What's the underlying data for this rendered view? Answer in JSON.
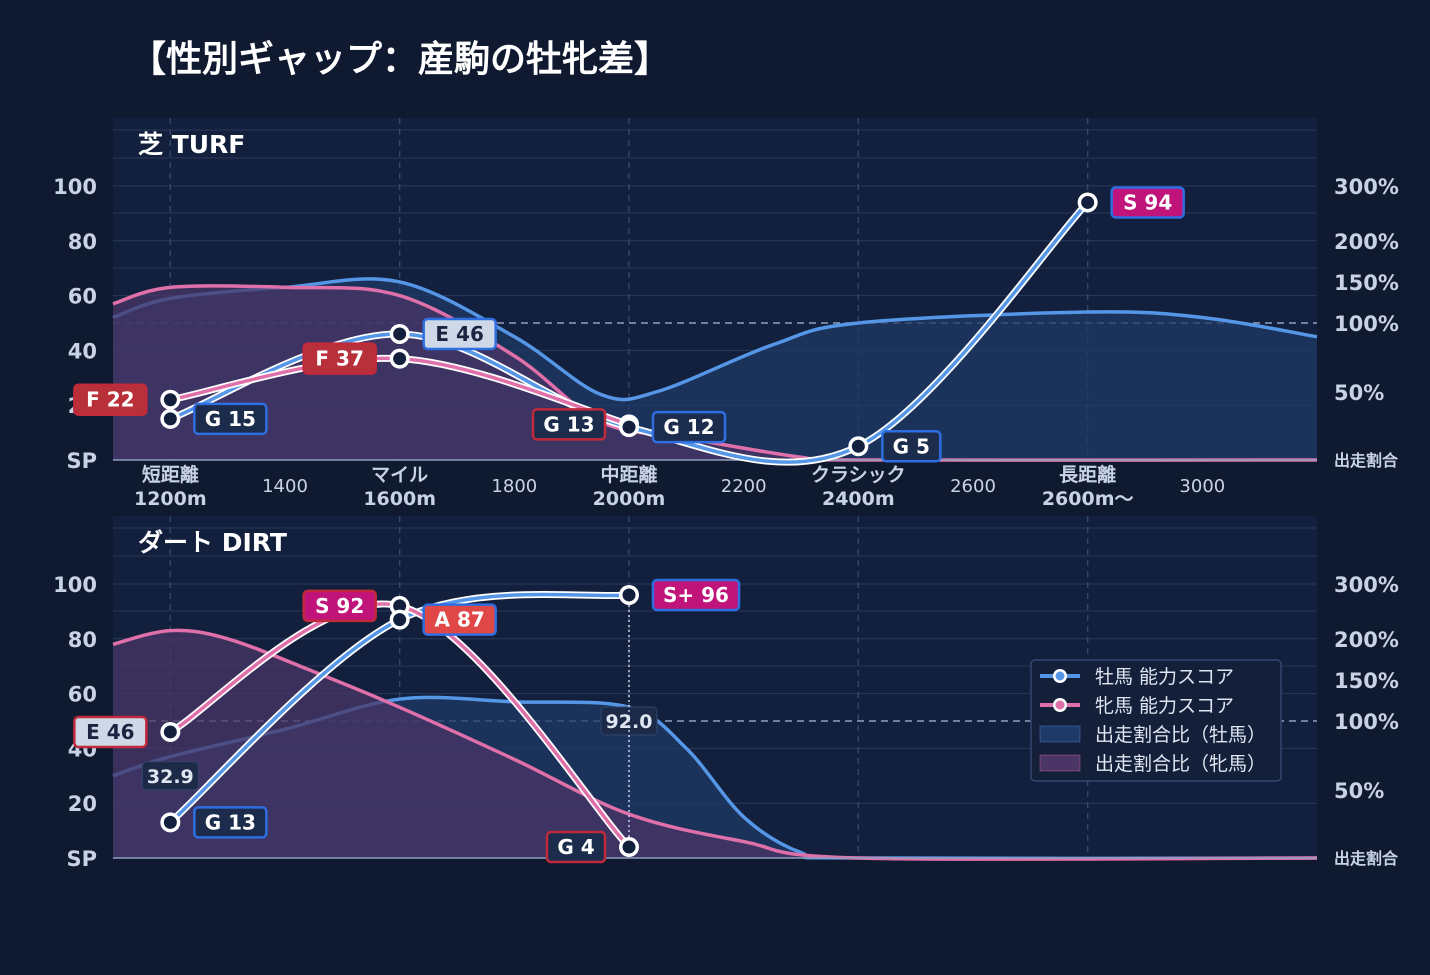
{
  "title": "【性別ギャップ：産駒の牡牝差】",
  "colors": {
    "background": "#0f1930",
    "panel": "#12203d",
    "male_line": "#5596e6",
    "female_line": "#e070aa",
    "male_area": "#1f3a66",
    "female_area": "#4a3566",
    "grade_S": "#c0147a",
    "grade_A": "#e04848",
    "grade_E": "#cfd8e6",
    "grade_F": "#b8303a",
    "grade_G": "#1c2c4c",
    "border_male": "#2f6ee0",
    "border_female": "#c02a3a"
  },
  "legend": {
    "male_score": "牡馬 能力スコア",
    "female_score": "牝馬 能力スコア",
    "male_ratio": "出走割合比（牡馬）",
    "female_ratio": "出走割合比（牝馬）"
  },
  "chart_data": [
    {
      "type": "line",
      "panel_label": "芝 TURF",
      "y_left_ticks": [
        "100",
        "80",
        "60",
        "40",
        "20",
        "SP"
      ],
      "y_left_range": [
        0,
        100
      ],
      "y_right_ticks": [
        "300%",
        "200%",
        "150%",
        "100%",
        "50%",
        "出走割合"
      ],
      "y_right_scale": "log-ish",
      "x_ticks": [
        {
          "x": 1200,
          "label": "短距離\n1200m",
          "major": true
        },
        {
          "x": 1400,
          "label": "1400",
          "major": false
        },
        {
          "x": 1600,
          "label": "マイル\n1600m",
          "major": true
        },
        {
          "x": 1800,
          "label": "1800",
          "major": false
        },
        {
          "x": 2000,
          "label": "中距離\n2000m",
          "major": true
        },
        {
          "x": 2200,
          "label": "2200",
          "major": false
        },
        {
          "x": 2400,
          "label": "クラシック\n2400m",
          "major": true
        },
        {
          "x": 2600,
          "label": "2600",
          "major": false
        },
        {
          "x": 2800,
          "label": "長距離\n2600m〜",
          "major": true
        },
        {
          "x": 3000,
          "label": "3000",
          "major": false
        }
      ],
      "x_range": [
        1100,
        3200
      ],
      "reference_line": "100%",
      "male_score": [
        {
          "x": 1200,
          "y": 15,
          "label": "G 15",
          "grade": "G"
        },
        {
          "x": 1600,
          "y": 46,
          "label": "E 46",
          "grade": "E"
        },
        {
          "x": 2000,
          "y": 12,
          "label": "G 12",
          "grade": "G"
        },
        {
          "x": 2400,
          "y": 5,
          "label": "G 5",
          "grade": "G"
        },
        {
          "x": 2800,
          "y": 94,
          "label": "S 94",
          "grade": "S"
        }
      ],
      "female_score": [
        {
          "x": 1200,
          "y": 22,
          "label": "F 22",
          "grade": "F"
        },
        {
          "x": 1600,
          "y": 37,
          "label": "F 37",
          "grade": "F"
        },
        {
          "x": 2000,
          "y": 13,
          "label": "G 13",
          "grade": "G"
        }
      ],
      "male_ratio": [
        [
          1100,
          52
        ],
        [
          1200,
          59
        ],
        [
          1400,
          63
        ],
        [
          1600,
          65
        ],
        [
          1800,
          45
        ],
        [
          1950,
          24
        ],
        [
          2050,
          25
        ],
        [
          2250,
          42
        ],
        [
          2400,
          50
        ],
        [
          2800,
          54
        ],
        [
          3000,
          52
        ],
        [
          3200,
          45
        ]
      ],
      "female_ratio": [
        [
          1100,
          57
        ],
        [
          1200,
          63
        ],
        [
          1400,
          63
        ],
        [
          1600,
          60
        ],
        [
          1800,
          38
        ],
        [
          1950,
          14
        ],
        [
          2100,
          8
        ],
        [
          2300,
          1
        ],
        [
          2400,
          0
        ],
        [
          3200,
          0
        ]
      ],
      "value_labels": []
    },
    {
      "type": "line",
      "panel_label": "ダート DIRT",
      "y_left_ticks": [
        "100",
        "80",
        "60",
        "40",
        "20",
        "SP"
      ],
      "y_left_range": [
        0,
        100
      ],
      "y_right_ticks": [
        "300%",
        "200%",
        "150%",
        "100%",
        "50%",
        "出走割合"
      ],
      "y_right_scale": "log-ish",
      "x_range": [
        1100,
        3200
      ],
      "reference_line": "100%",
      "male_score": [
        {
          "x": 1200,
          "y": 13,
          "label": "G 13",
          "grade": "G"
        },
        {
          "x": 1600,
          "y": 87,
          "label": "A 87",
          "grade": "A"
        },
        {
          "x": 2000,
          "y": 96,
          "label": "S+ 96",
          "grade": "S"
        }
      ],
      "female_score": [
        {
          "x": 1200,
          "y": 46,
          "label": "E 46",
          "grade": "E"
        },
        {
          "x": 1600,
          "y": 92,
          "label": "S 92",
          "grade": "S"
        },
        {
          "x": 2000,
          "y": 4,
          "label": "G 4",
          "grade": "G"
        }
      ],
      "male_ratio": [
        [
          1100,
          30
        ],
        [
          1200,
          37
        ],
        [
          1400,
          47
        ],
        [
          1600,
          58
        ],
        [
          1800,
          57
        ],
        [
          2000,
          55
        ],
        [
          2100,
          40
        ],
        [
          2200,
          15
        ],
        [
          2300,
          2
        ],
        [
          2400,
          0
        ],
        [
          3200,
          0
        ]
      ],
      "female_ratio": [
        [
          1100,
          78
        ],
        [
          1200,
          83
        ],
        [
          1300,
          80
        ],
        [
          1450,
          68
        ],
        [
          1600,
          55
        ],
        [
          1800,
          36
        ],
        [
          2000,
          16
        ],
        [
          2200,
          6
        ],
        [
          2400,
          0
        ],
        [
          3200,
          0
        ]
      ],
      "value_labels": [
        {
          "x": 1200,
          "y": 30,
          "text": "32.9"
        },
        {
          "x": 2000,
          "y": 50,
          "text": "92.0"
        }
      ]
    }
  ]
}
